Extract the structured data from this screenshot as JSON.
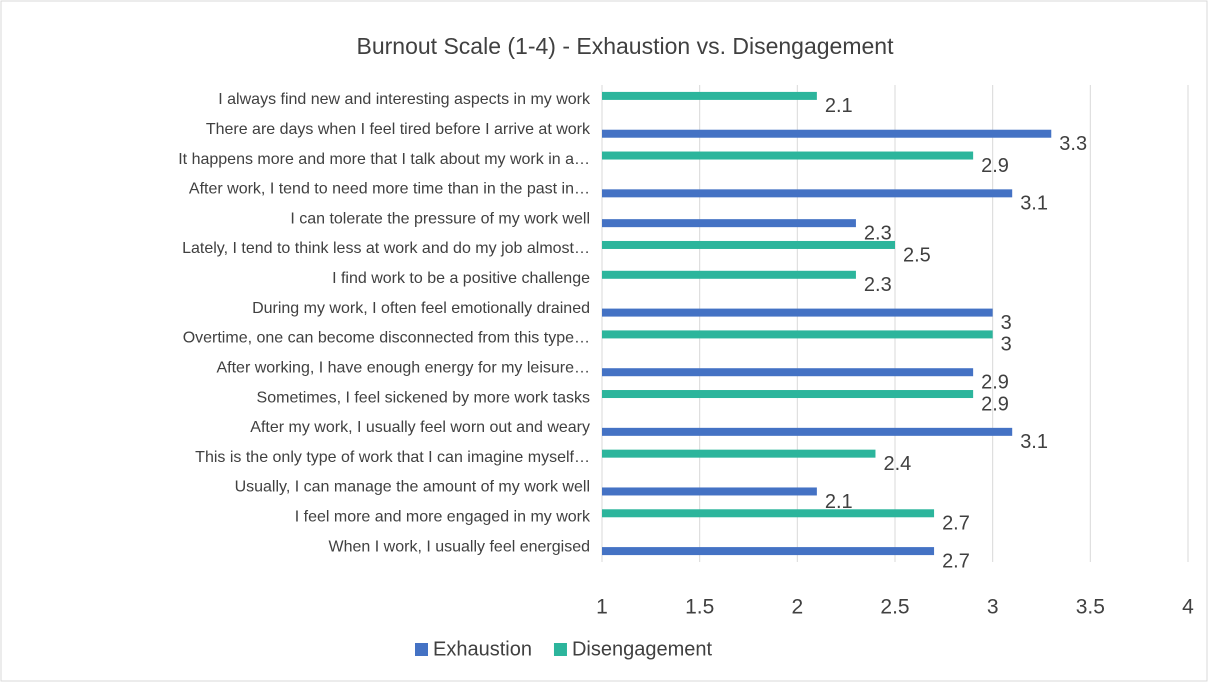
{
  "chart_data": {
    "type": "hbar",
    "title": "Burnout Scale (1-4) - Exhaustion vs. Disengagement",
    "categories": [
      "I always find new and interesting aspects in my work",
      "There are days when I feel tired before I arrive at work",
      "It happens more and more that I talk about my work in a…",
      "After work, I tend to need more time than in the past in…",
      "I can tolerate the pressure of my work well",
      "Lately, I tend to think less at work and do my job almost…",
      "I find work to be a positive challenge",
      "During my work, I often feel emotionally drained",
      "Overtime, one can become disconnected from this type…",
      "After working, I have enough energy for my leisure…",
      "Sometimes, I feel sickened by more work tasks",
      "After my work, I usually feel worn out and weary",
      "This is the only type of work that I can imagine myself…",
      "Usually, I can manage the amount of my work well",
      "I feel more and more engaged in my work",
      "When I work, I usually feel energised"
    ],
    "series": [
      {
        "name": "Exhaustion",
        "color": "#4472c4",
        "values": [
          null,
          3.3,
          null,
          3.1,
          2.3,
          null,
          null,
          3,
          null,
          2.9,
          null,
          3.1,
          null,
          2.1,
          null,
          2.7
        ]
      },
      {
        "name": "Disengagement",
        "color": "#2cb59c",
        "values": [
          2.1,
          null,
          2.9,
          null,
          null,
          2.5,
          2.3,
          null,
          3,
          null,
          2.9,
          null,
          2.4,
          null,
          2.7,
          null
        ]
      }
    ],
    "xlim": [
      1,
      4
    ],
    "xticks": [
      1,
      1.5,
      2,
      2.5,
      3,
      3.5,
      4
    ],
    "grid": true,
    "legend": "bottom"
  }
}
